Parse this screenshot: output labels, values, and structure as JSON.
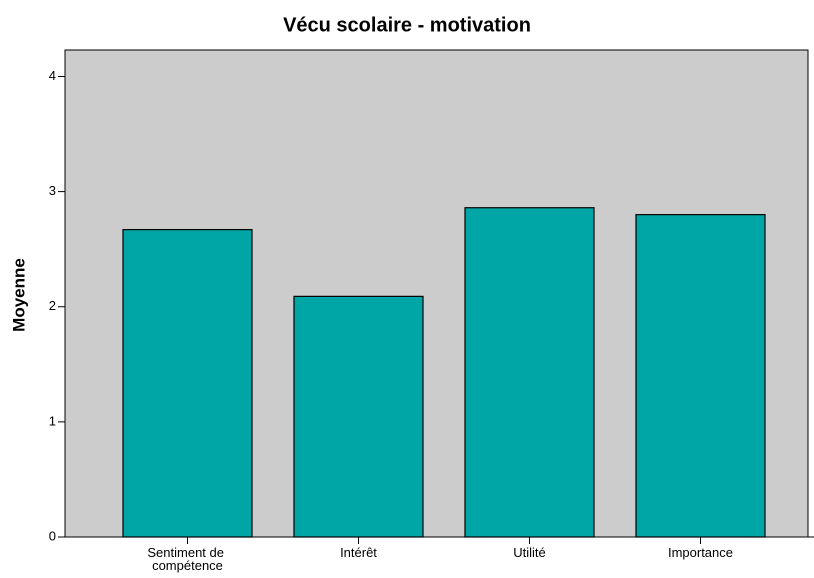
{
  "chart_data": {
    "type": "bar",
    "title": "Vécu scolaire - motivation",
    "y_label": "Moyenne",
    "categories": [
      "Sentiment de compétence",
      "Intérêt",
      "Utilité",
      "Importance"
    ],
    "values": [
      2.67,
      2.09,
      2.86,
      2.8
    ],
    "color": "#00a6a6",
    "ylim": [
      0,
      4.23
    ],
    "yticks": [
      0,
      1,
      2,
      3,
      4
    ],
    "grid": false
  }
}
